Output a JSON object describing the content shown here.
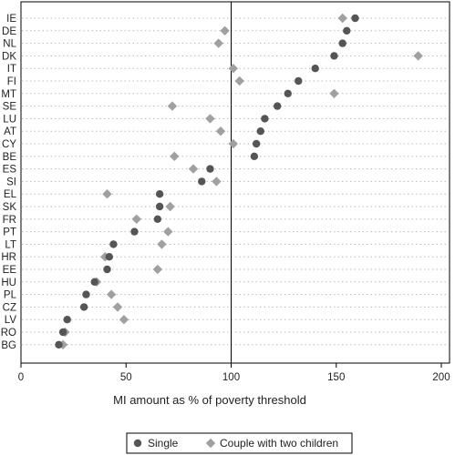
{
  "chart_data": {
    "type": "scatter",
    "xlabel": "MI amount as % of poverty threshold",
    "xlim": [
      0,
      200
    ],
    "xticks": [
      0,
      50,
      100,
      150,
      200
    ],
    "reference_line_x": 100,
    "grid": "dotted horizontal",
    "legend_position": "bottom",
    "categories": [
      "IE",
      "DE",
      "NL",
      "DK",
      "IT",
      "FI",
      "MT",
      "SE",
      "LU",
      "AT",
      "CY",
      "BE",
      "ES",
      "SI",
      "EL",
      "SK",
      "FR",
      "PT",
      "LT",
      "HR",
      "EE",
      "HU",
      "PL",
      "CZ",
      "LV",
      "RO",
      "BG"
    ],
    "series": [
      {
        "name": "Single",
        "marker": "circle",
        "color": "#555555",
        "values": [
          159,
          155,
          153,
          149,
          140,
          132,
          127,
          122,
          116,
          114,
          112,
          111,
          90,
          86,
          66,
          66,
          65,
          54,
          44,
          42,
          41,
          35,
          31,
          30,
          22,
          20,
          18
        ]
      },
      {
        "name": "Couple with two children",
        "marker": "diamond",
        "color": "#a0a0a0",
        "values": [
          153,
          97,
          94,
          189,
          101,
          104,
          149,
          72,
          90,
          95,
          101,
          73,
          82,
          93,
          41,
          71,
          55,
          70,
          67,
          40,
          65,
          36,
          43,
          46,
          49,
          21,
          20
        ]
      }
    ]
  }
}
